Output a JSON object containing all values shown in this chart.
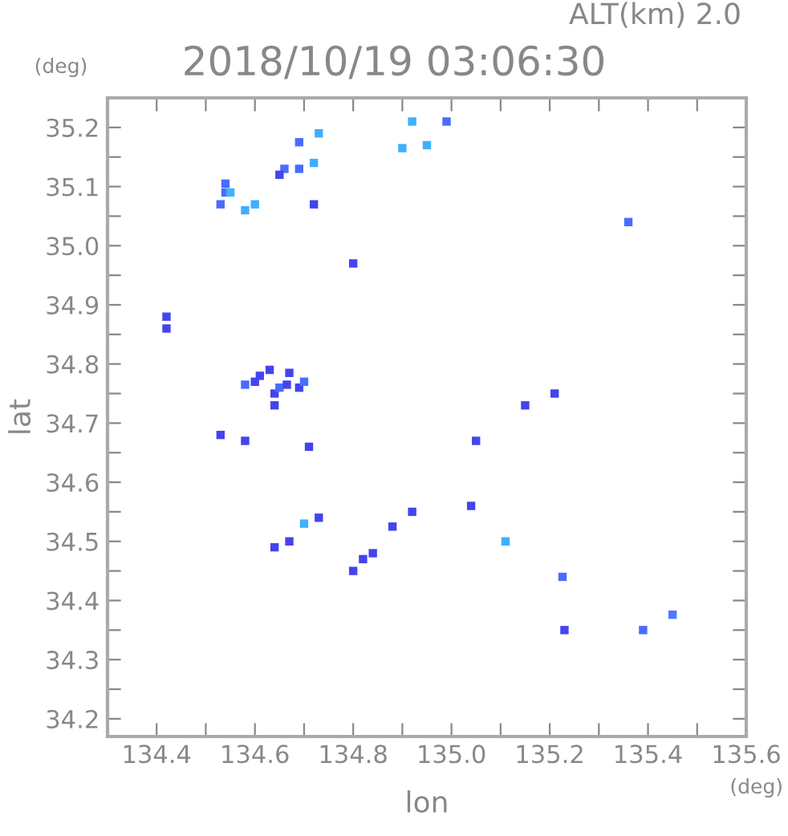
{
  "chart_data": {
    "type": "scatter",
    "title": "2018/10/19 03:06:30",
    "subtitle": "ALT(km) 2.0",
    "xlabel": "lon",
    "ylabel": "lat",
    "annotations": [
      "(deg)",
      "(deg)"
    ],
    "xlim": [
      134.3,
      135.6
    ],
    "ylim": [
      34.17,
      35.25
    ],
    "xticks": [
      134.4,
      {
        "value": 134.5,
        "label": null
      },
      134.6,
      {
        "value": 134.7,
        "label": null
      },
      134.8,
      {
        "value": 134.9,
        "label": null
      },
      {
        "value": 135.0,
        "label": "135.0"
      },
      {
        "value": 135.1,
        "label": null
      },
      135.2,
      {
        "value": 135.3,
        "label": null
      },
      135.4,
      {
        "value": 135.5,
        "label": null
      },
      135.6
    ],
    "yticks": [
      34.2,
      {
        "value": 34.25,
        "label": null
      },
      34.3,
      {
        "value": 34.35,
        "label": null
      },
      34.4,
      {
        "value": 34.45,
        "label": null
      },
      34.5,
      {
        "value": 34.55,
        "label": null
      },
      34.6,
      {
        "value": 34.65,
        "label": null
      },
      34.7,
      {
        "value": 34.75,
        "label": null
      },
      34.8,
      {
        "value": 34.85,
        "label": null
      },
      34.9,
      {
        "value": 34.95,
        "label": null
      },
      {
        "value": 35.0,
        "label": "35.0"
      },
      {
        "value": 35.05,
        "label": null
      },
      35.1,
      {
        "value": 35.15,
        "label": null
      },
      35.2
    ],
    "grid": false,
    "marker": "square",
    "series": [
      {
        "x": [
          134.54,
          134.54,
          134.53,
          134.55,
          134.58,
          134.6,
          134.66,
          134.69,
          134.65,
          134.72,
          134.69,
          134.73,
          134.72,
          134.92,
          134.99,
          134.9,
          134.95,
          135.36,
          134.8,
          134.42,
          134.42,
          134.58,
          134.6,
          134.61,
          134.64,
          134.64,
          134.65,
          134.67,
          134.665,
          134.69,
          134.7,
          134.63,
          135.21,
          135.15,
          135.05,
          134.58,
          134.53,
          134.71,
          134.7,
          134.73,
          134.67,
          134.64,
          134.8,
          134.82,
          134.84,
          134.88,
          134.92,
          135.04,
          135.11,
          135.226,
          135.23,
          135.39,
          135.45
        ],
        "values": [
          35.09,
          35.105,
          35.07,
          35.09,
          35.06,
          35.07,
          35.13,
          35.13,
          35.12,
          35.14,
          35.175,
          35.19,
          35.07,
          35.21,
          35.21,
          35.165,
          35.17,
          35.04,
          34.97,
          34.88,
          34.86,
          34.765,
          34.77,
          34.78,
          34.75,
          34.73,
          34.76,
          34.785,
          34.765,
          34.76,
          34.77,
          34.79,
          34.75,
          34.73,
          34.67,
          34.67,
          34.68,
          34.66,
          34.53,
          34.54,
          34.5,
          34.49,
          34.45,
          34.47,
          34.48,
          34.525,
          34.55,
          34.56,
          34.5,
          34.44,
          34.35,
          34.35,
          34.376
        ],
        "colors": [
          "#4a6cff",
          "#4a6cff",
          "#4a6cff",
          "#3fb0ff",
          "#3fb0ff",
          "#3fb0ff",
          "#4a6cff",
          "#4a6cff",
          "#4444ee",
          "#3fb0ff",
          "#4a6cff",
          "#3fb0ff",
          "#4444ee",
          "#3fb0ff",
          "#4a6cff",
          "#3fb0ff",
          "#3fb0ff",
          "#4a6cff",
          "#4444ee",
          "#4444ee",
          "#4444ee",
          "#4a6cff",
          "#4444ee",
          "#4444ee",
          "#4444ee",
          "#4444ee",
          "#4a6cff",
          "#4444ee",
          "#4444ee",
          "#4444ee",
          "#4a6cff",
          "#4444ee",
          "#4444ee",
          "#4444ee",
          "#4444ee",
          "#4444ee",
          "#4444ee",
          "#4444ee",
          "#3fb0ff",
          "#4444ee",
          "#4444ee",
          "#4444ee",
          "#4444ee",
          "#4444ee",
          "#4444ee",
          "#4444ee",
          "#4444ee",
          "#4444ee",
          "#3fb0ff",
          "#4a6cff",
          "#4444ee",
          "#4a6cff",
          "#4a7aff"
        ]
      }
    ]
  }
}
